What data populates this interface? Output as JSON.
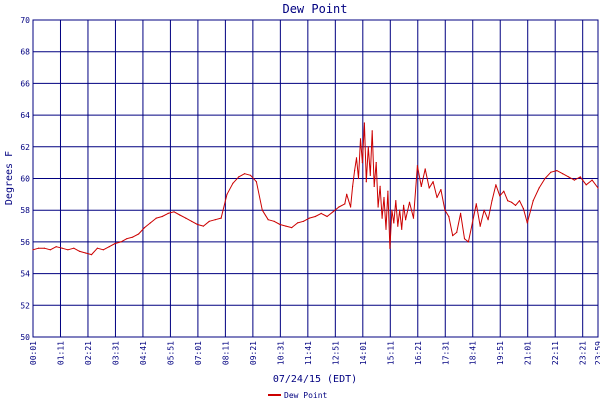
{
  "chart_data": {
    "type": "line",
    "title": "Dew Point",
    "xlabel": "07/24/15 (EDT)",
    "ylabel": "Degrees F",
    "ylim": [
      50,
      70
    ],
    "xlim": [
      1,
      1440
    ],
    "grid": true,
    "legend_position": "bottom-center",
    "x_ticks": [
      {
        "x": 1,
        "label": "00:01"
      },
      {
        "x": 71,
        "label": "01:11"
      },
      {
        "x": 141,
        "label": "02:21"
      },
      {
        "x": 211,
        "label": "03:31"
      },
      {
        "x": 281,
        "label": "04:41"
      },
      {
        "x": 351,
        "label": "05:51"
      },
      {
        "x": 421,
        "label": "07:01"
      },
      {
        "x": 491,
        "label": "08:11"
      },
      {
        "x": 561,
        "label": "09:21"
      },
      {
        "x": 631,
        "label": "10:31"
      },
      {
        "x": 701,
        "label": "11:41"
      },
      {
        "x": 771,
        "label": "12:51"
      },
      {
        "x": 841,
        "label": "14:01"
      },
      {
        "x": 911,
        "label": "15:11"
      },
      {
        "x": 981,
        "label": "16:21"
      },
      {
        "x": 1051,
        "label": "17:31"
      },
      {
        "x": 1121,
        "label": "18:41"
      },
      {
        "x": 1191,
        "label": "19:51"
      },
      {
        "x": 1261,
        "label": "21:01"
      },
      {
        "x": 1331,
        "label": "22:11"
      },
      {
        "x": 1401,
        "label": "23:21"
      },
      {
        "x": 1440,
        "label": "23:59"
      }
    ],
    "y_ticks": [
      50,
      52,
      54,
      56,
      58,
      60,
      62,
      64,
      66,
      68,
      70
    ],
    "series": [
      {
        "name": "Dew Point",
        "color": "#cc0000",
        "x": [
          1,
          15,
          30,
          45,
          60,
          75,
          90,
          105,
          120,
          135,
          150,
          165,
          180,
          195,
          210,
          225,
          240,
          255,
          270,
          285,
          300,
          315,
          330,
          345,
          360,
          375,
          390,
          405,
          420,
          435,
          450,
          465,
          480,
          495,
          510,
          525,
          540,
          555,
          570,
          585,
          600,
          615,
          630,
          645,
          660,
          675,
          690,
          705,
          720,
          735,
          750,
          765,
          780,
          795,
          800,
          810,
          815,
          820,
          825,
          830,
          835,
          840,
          845,
          850,
          855,
          860,
          865,
          870,
          875,
          880,
          885,
          890,
          895,
          900,
          905,
          910,
          915,
          920,
          925,
          930,
          935,
          940,
          945,
          950,
          960,
          970,
          980,
          990,
          1000,
          1010,
          1020,
          1030,
          1040,
          1050,
          1060,
          1070,
          1080,
          1090,
          1100,
          1110,
          1120,
          1130,
          1140,
          1150,
          1160,
          1170,
          1180,
          1190,
          1200,
          1210,
          1220,
          1230,
          1240,
          1250,
          1260,
          1275,
          1290,
          1305,
          1320,
          1335,
          1350,
          1365,
          1380,
          1395,
          1410,
          1425,
          1440
        ],
        "values": [
          55.5,
          55.6,
          55.6,
          55.5,
          55.7,
          55.6,
          55.5,
          55.6,
          55.4,
          55.3,
          55.2,
          55.6,
          55.5,
          55.7,
          55.9,
          56.0,
          56.2,
          56.3,
          56.5,
          56.9,
          57.2,
          57.5,
          57.6,
          57.8,
          57.9,
          57.7,
          57.5,
          57.3,
          57.1,
          57.0,
          57.3,
          57.4,
          57.5,
          59.0,
          59.7,
          60.1,
          60.3,
          60.2,
          59.8,
          58.0,
          57.4,
          57.3,
          57.1,
          57.0,
          56.9,
          57.2,
          57.3,
          57.5,
          57.6,
          57.8,
          57.6,
          57.9,
          58.2,
          58.4,
          59.0,
          58.2,
          59.5,
          60.5,
          61.3,
          60.0,
          62.5,
          61.0,
          63.5,
          59.8,
          62.0,
          60.2,
          63.0,
          59.5,
          61.0,
          58.2,
          59.5,
          57.5,
          58.8,
          56.8,
          59.2,
          55.6,
          58.0,
          57.2,
          58.6,
          57.0,
          58.0,
          56.8,
          58.3,
          57.4,
          58.5,
          57.5,
          60.8,
          59.5,
          60.6,
          59.4,
          59.8,
          58.8,
          59.3,
          58.0,
          57.6,
          56.4,
          56.6,
          57.8,
          56.2,
          56.0,
          57.2,
          58.4,
          57.0,
          58.0,
          57.4,
          58.6,
          59.6,
          58.9,
          59.2,
          58.6,
          58.5,
          58.3,
          58.6,
          58.1,
          57.2,
          58.6,
          59.4,
          60.0,
          60.4,
          60.5,
          60.3,
          60.1,
          59.9,
          60.1,
          59.6,
          59.9,
          59.4
        ]
      }
    ]
  }
}
